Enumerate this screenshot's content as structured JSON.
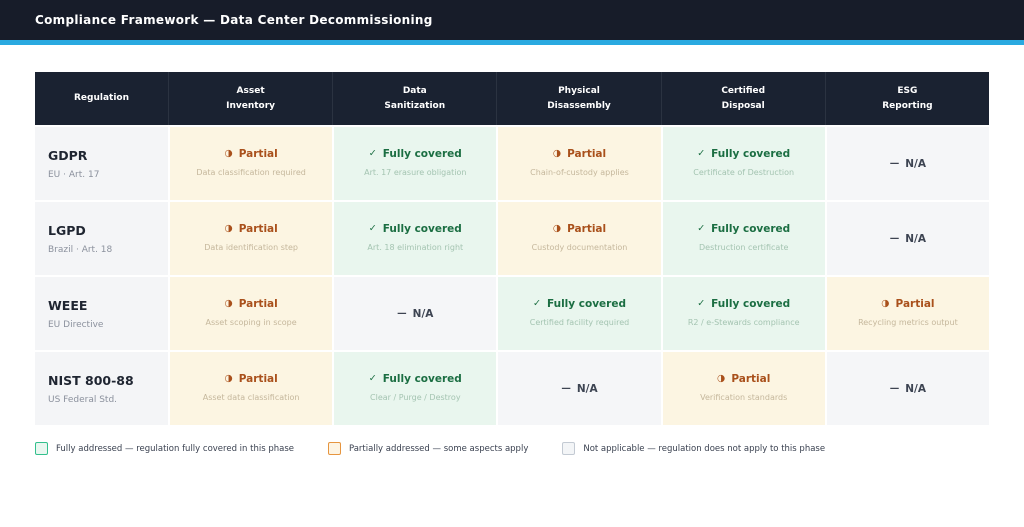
{
  "header": {
    "title": "Compliance Framework — Data Center Decommissioning"
  },
  "colors": {
    "page_bg": "#ffffff",
    "header_bg": "#171c29",
    "accent": "#2aa9e0",
    "thead_bg": "#1a2231",
    "reg_col_bg": "#f4f5f7",
    "row_name": "#1f2531",
    "row_subtitle": "#8b919d"
  },
  "statuses": {
    "full": {
      "label": "Fully covered",
      "icon": "✓",
      "icon_name": "check-icon",
      "fg": "#1b6e42",
      "bg": "#e9f6ee",
      "sub": "#a4c4b1",
      "swatch_border": "#33c08d",
      "swatch_fill": "#e9f7f0"
    },
    "partial": {
      "label": "Partial",
      "icon": "◑",
      "icon_name": "half-circle-icon",
      "fg": "#a9501b",
      "bg": "#fcf5e2",
      "sub": "#c5b79c",
      "swatch_border": "#e6953f",
      "swatch_fill": "#fdf4e3"
    },
    "na": {
      "label": "N/A",
      "icon": "—",
      "icon_name": "dash-icon",
      "fg": "#3d4452",
      "bg": "#f5f6f8",
      "sub": "#9aa0ab",
      "swatch_border": "#c3cad3",
      "swatch_fill": "#f3f5f7"
    }
  },
  "chart_data": {
    "type": "table",
    "title": "Compliance Framework — Data Center Decommissioning",
    "columns": [
      "Regulation",
      "Asset Inventory",
      "Data Sanitization",
      "Physical Disassembly",
      "Certified Disposal",
      "ESG Reporting"
    ],
    "rows": [
      {
        "regulation": "GDPR",
        "jurisdiction": "EU · Art. 17",
        "cells": [
          {
            "status": "partial",
            "note": "Data classification required"
          },
          {
            "status": "full",
            "note": "Art. 17 erasure obligation"
          },
          {
            "status": "partial",
            "note": "Chain-of-custody applies"
          },
          {
            "status": "full",
            "note": "Certificate of Destruction"
          },
          {
            "status": "na",
            "note": ""
          }
        ]
      },
      {
        "regulation": "LGPD",
        "jurisdiction": "Brazil · Art. 18",
        "cells": [
          {
            "status": "partial",
            "note": "Data identification step"
          },
          {
            "status": "full",
            "note": "Art. 18 elimination right"
          },
          {
            "status": "partial",
            "note": "Custody documentation"
          },
          {
            "status": "full",
            "note": "Destruction certificate"
          },
          {
            "status": "na",
            "note": ""
          }
        ]
      },
      {
        "regulation": "WEEE",
        "jurisdiction": "EU Directive",
        "cells": [
          {
            "status": "partial",
            "note": "Asset scoping in scope"
          },
          {
            "status": "na",
            "note": ""
          },
          {
            "status": "full",
            "note": "Certified facility required"
          },
          {
            "status": "full",
            "note": "R2 / e-Stewards compliance"
          },
          {
            "status": "partial",
            "note": "Recycling metrics output"
          }
        ]
      },
      {
        "regulation": "NIST 800-88",
        "jurisdiction": "US Federal Std.",
        "cells": [
          {
            "status": "partial",
            "note": "Asset data classification"
          },
          {
            "status": "full",
            "note": "Clear / Purge / Destroy"
          },
          {
            "status": "na",
            "note": ""
          },
          {
            "status": "partial",
            "note": "Verification standards"
          },
          {
            "status": "na",
            "note": ""
          }
        ]
      }
    ]
  },
  "legend": [
    {
      "status": "full",
      "text": "Fully addressed — regulation fully covered in this phase"
    },
    {
      "status": "partial",
      "text": "Partially addressed — some aspects apply"
    },
    {
      "status": "na",
      "text": "Not applicable — regulation does not apply to this phase"
    }
  ]
}
